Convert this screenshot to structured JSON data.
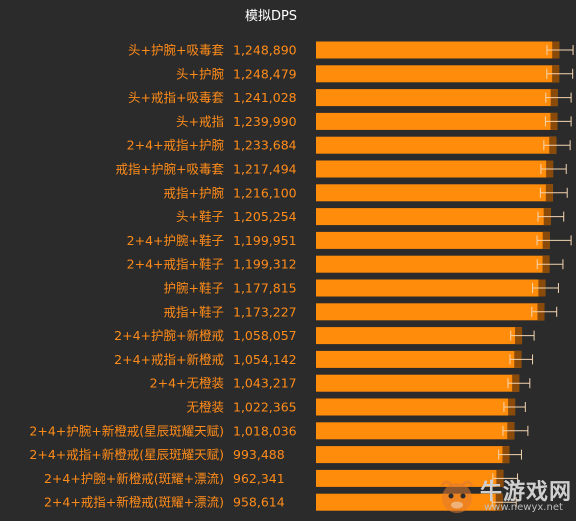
{
  "chart_data": {
    "type": "bar",
    "orientation": "horizontal",
    "title": "模拟DPS",
    "categories": [
      "头+护腕+吸毒套",
      "头+护腕",
      "头+戒指+吸毒套",
      "头+戒指",
      "2+4+戒指+护腕",
      "戒指+护腕+吸毒套",
      "戒指+护腕",
      "头+鞋子",
      "2+4+护腕+鞋子",
      "2+4+戒指+鞋子",
      "护腕+鞋子",
      "戒指+鞋子",
      "2+4+护腕+新橙戒",
      "2+4+戒指+新橙戒",
      "2+4+无橙装",
      "无橙装",
      "2+4+护腕+新橙戒(星辰斑耀天赋)",
      "2+4+戒指+新橙戒(星辰斑耀天赋)",
      "2+4+护腕+新橙戒(斑耀+漂流)",
      "2+4+戒指+新橙戒(斑耀+漂流)"
    ],
    "value_labels": [
      "1,248,890",
      "1,248,479",
      "1,241,028",
      "1,239,990",
      "1,233,684",
      "1,217,494",
      "1,216,100",
      "1,205,254",
      "1,199,951",
      "1,199,312",
      "1,177,815",
      "1,173,227",
      "1,058,057",
      "1,054,142",
      "1,043,217",
      "1,022,365",
      "1,018,036",
      "993,488",
      "962,341",
      "958,614"
    ],
    "values": [
      1248890,
      1248479,
      1241028,
      1239990,
      1233684,
      1217494,
      1216100,
      1205254,
      1199951,
      1199312,
      1177815,
      1173227,
      1058057,
      1054142,
      1043217,
      1022365,
      1018036,
      993488,
      962341,
      958614
    ],
    "error_low": [
      1186000,
      1185000,
      1180000,
      1178000,
      1170000,
      1155000,
      1152000,
      1140000,
      1135000,
      1136000,
      1112000,
      1108000,
      1000000,
      996000,
      986000,
      965000,
      960000,
      938000,
      908000,
      905000
    ],
    "error_high": [
      1320000,
      1318000,
      1310000,
      1310000,
      1305000,
      1285000,
      1290000,
      1272000,
      1310000,
      1268000,
      1245000,
      1236000,
      1120000,
      1112000,
      1098000,
      1075000,
      1088000,
      1055000,
      1035000,
      1028000
    ],
    "xlim": [
      0,
      1330000
    ],
    "colors": {
      "bar": "#ff8c0a",
      "bar_dark": "#8a4a0a",
      "error": "#f4d4b0",
      "label": "#ff8c1a",
      "title": "#ffffff",
      "background": "#2b2b2b"
    },
    "grid": false,
    "legend": "none"
  },
  "watermark": {
    "text": "牛游戏网",
    "url": "www.newyx.net"
  }
}
